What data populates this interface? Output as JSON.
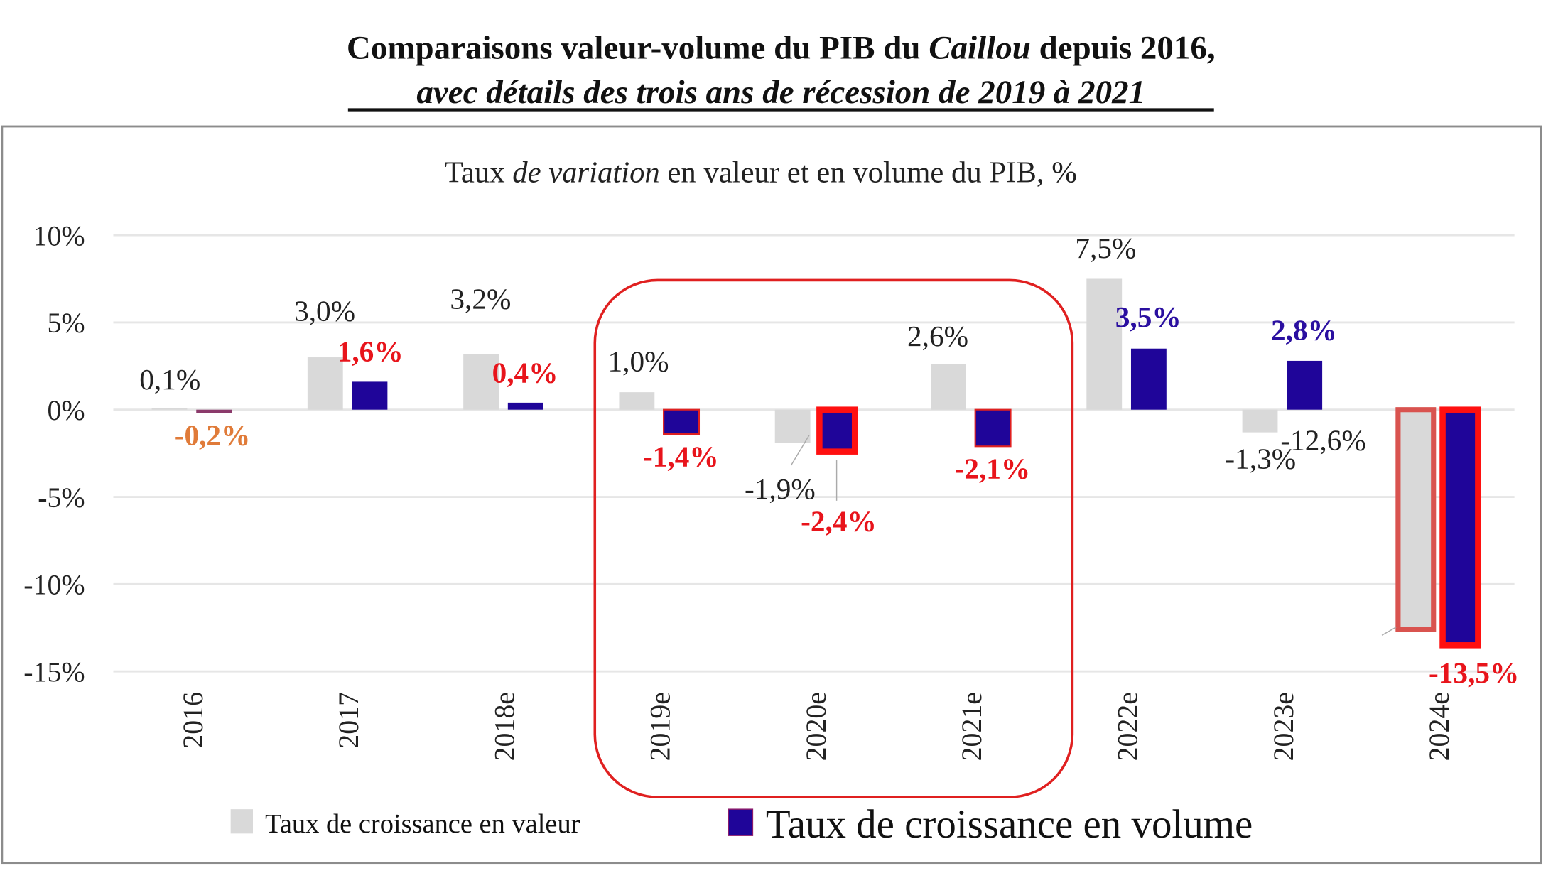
{
  "header": {
    "title_part1": "Comparaisons valeur-volume du PIB du ",
    "title_italic": "Caillou",
    "title_part2": " depuis 2016,",
    "subtitle": "avec détails des trois ans de récession de 2019 à 2021"
  },
  "chart_data": {
    "type": "bar",
    "title_part1": "Taux ",
    "title_italic": "de variation",
    "title_part2": " en valeur et en volume du PIB, %",
    "categories": [
      "2016",
      "2017",
      "2018e",
      "2019e",
      "2020e",
      "2021e",
      "2022e",
      "2023e",
      "2024e"
    ],
    "series": [
      {
        "name": "Taux de croissance en valeur",
        "color": "#d9d9d9",
        "values": [
          0.1,
          3.0,
          3.2,
          1.0,
          -1.9,
          2.6,
          7.5,
          -1.3,
          -12.6
        ],
        "labels": [
          "0,1%",
          "3,0%",
          "3,2%",
          "1,0%",
          "-1,9%",
          "2,6%",
          "7,5%",
          "-1,3%",
          "-12,6%"
        ]
      },
      {
        "name": "Taux de croissance en volume",
        "color": "#1f0599",
        "values": [
          -0.2,
          1.6,
          0.4,
          -1.4,
          -2.4,
          -2.1,
          3.5,
          2.8,
          -13.5
        ],
        "labels": [
          "-0,2%",
          "1,6%",
          "0,4%",
          "-1,4%",
          "-2,4%",
          "-2,1%",
          "3,5%",
          "2,8%",
          "-13,5%"
        ],
        "label_colors": [
          "#e07b39",
          "#e8141b",
          "#e8141b",
          "#e8141b",
          "#e8141b",
          "#e8141b",
          "#2a0fa0",
          "#2a0fa0",
          "#e8141b"
        ]
      }
    ],
    "ylim": [
      -15,
      10
    ],
    "yticks": [
      10,
      5,
      0,
      -5,
      -10,
      -15
    ],
    "ytick_labels": [
      "10%",
      "5%",
      "0%",
      "-5%",
      "-10%",
      "-15%"
    ],
    "grid": true,
    "highlight_range": [
      "2019e",
      "2021e"
    ],
    "legend_position": "bottom",
    "xlabel": "",
    "ylabel": ""
  },
  "colors": {
    "highlight": "#e02020",
    "text": "#111111",
    "grid": "#e6e6e6"
  }
}
